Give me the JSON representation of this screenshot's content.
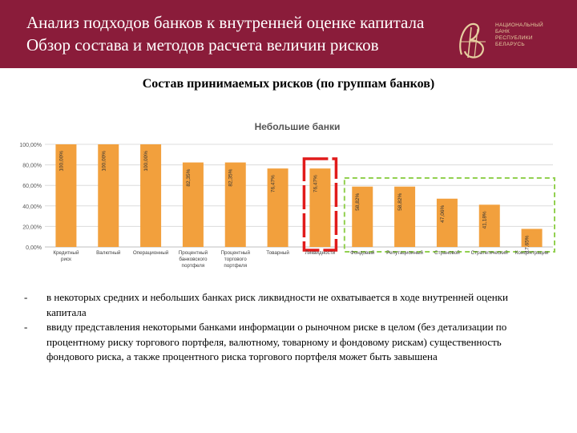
{
  "header": {
    "title_line1": "Анализ подходов банков к внутренней оценке капитала",
    "title_line2": "Обзор состава и методов расчета величин рисков",
    "logo_text": [
      "НАЦИОНАЛЬНЫЙ",
      "БАНК",
      "РЕСПУБЛИКИ",
      "БЕЛАРУСЬ"
    ],
    "logo_icon": "nbrb-monogram-icon"
  },
  "section_title": "Состав принимаемых рисков (по группам банков)",
  "colors": {
    "header_bg": "#8a1c3a",
    "bar": "#f2a03d",
    "red_box": "#e11b1b",
    "green_box": "#92d050",
    "gold": "#e6cfa0"
  },
  "chart_data": {
    "type": "bar",
    "title": "Небольшие банки",
    "categories": [
      [
        "Кредитный",
        "риск"
      ],
      [
        "Валютный"
      ],
      [
        "Операционный"
      ],
      [
        "Процентный",
        "банковского",
        "портфеля"
      ],
      [
        "Процентный",
        "торгового",
        "портфеля"
      ],
      [
        "Товарный"
      ],
      [
        "Ликвидности"
      ],
      [
        "Фондовый"
      ],
      [
        "Репутационный"
      ],
      [
        "Страновой"
      ],
      [
        "Стратегический"
      ],
      [
        "Концентрации"
      ]
    ],
    "values": [
      100.0,
      100.0,
      100.0,
      82.35,
      82.35,
      76.47,
      76.47,
      58.82,
      58.82,
      47.06,
      41.18,
      17.65
    ],
    "labels": [
      "100,00%",
      "100,00%",
      "100,00%",
      "82,35%",
      "82,35%",
      "76,47%",
      "76,47%",
      "58,82%",
      "58,82%",
      "47,06%",
      "41,18%",
      "17,65%"
    ],
    "yticks": [
      "0,00%",
      "20,00%",
      "40,00%",
      "60,00%",
      "80,00%",
      "100,00%"
    ],
    "ylim": [
      0,
      100
    ],
    "grid": true,
    "highlight_red": [
      6
    ],
    "highlight_green": [
      7,
      11
    ]
  },
  "bullets": [
    "в некоторых средних и небольших банках риск ликвидности не охватывается в ходе внутренней оценки капитала",
    "ввиду представления некоторыми банками информации о рыночном риске в целом (без детализации по процентному риску торгового портфеля, валютному, товарному и фондовому рискам) существенность фондового риска, а также процентного риска торгового портфеля может быть завышена"
  ],
  "bullet_marker": "-"
}
